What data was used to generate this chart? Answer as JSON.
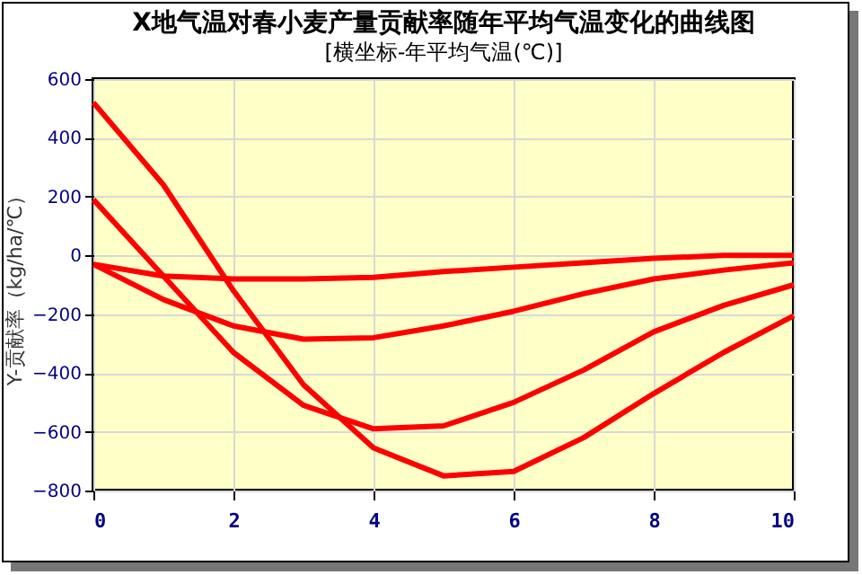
{
  "chart_data": {
    "type": "line",
    "title": "X地气温对春小麦产量贡献率随年平均气温变化的曲线图",
    "subtitle": "[横坐标-年平均气温(℃)]",
    "ylabel": "Y-贡献率（kg/ha/℃）",
    "x": [
      0,
      1,
      2,
      3,
      4,
      5,
      6,
      7,
      8,
      9,
      10
    ],
    "series": [
      {
        "color": "#ff0000",
        "values": [
          -30,
          -70,
          -80,
          -80,
          -75,
          -55,
          -40,
          -25,
          -10,
          0,
          0
        ]
      },
      {
        "color": "#ff0000",
        "values": [
          -30,
          -150,
          -240,
          -285,
          -280,
          -240,
          -190,
          -130,
          -80,
          -50,
          -25
        ]
      },
      {
        "color": "#ff0000",
        "values": [
          190,
          -70,
          -330,
          -510,
          -590,
          -580,
          -500,
          -390,
          -260,
          -170,
          -100
        ]
      },
      {
        "color": "#ff0000",
        "values": [
          520,
          240,
          -120,
          -440,
          -655,
          -750,
          -735,
          -620,
          -470,
          -330,
          -205
        ]
      }
    ],
    "xlim": [
      0,
      10
    ],
    "xticks": [
      0,
      2,
      4,
      6,
      8,
      10
    ],
    "ylim": [
      -800,
      600
    ],
    "yticks": [
      -800,
      -600,
      -400,
      -200,
      0,
      200,
      400,
      600
    ],
    "grid": true,
    "line_style": "solid",
    "marker": "none"
  }
}
